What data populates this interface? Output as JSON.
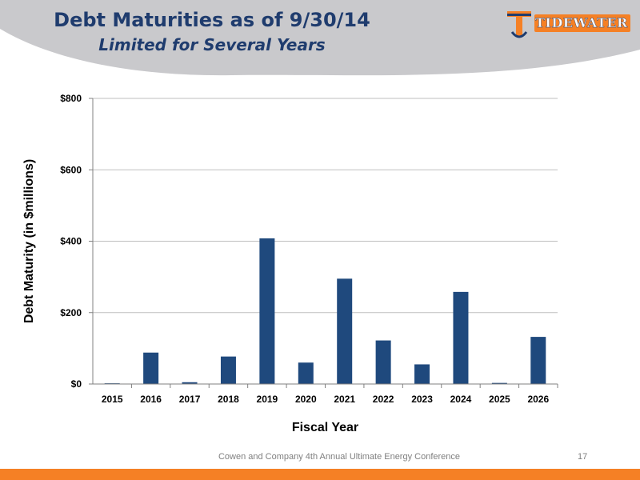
{
  "slide": {
    "title": "Debt Maturities as of 9/30/14",
    "subtitle": "Limited for Several Years",
    "logo_text": "TIDEWATER",
    "footer": "Cowen and Company 4th Annual Ultimate Energy Conference",
    "page_number": "17"
  },
  "colors": {
    "title": "#1f3c6e",
    "bar": "#1f497d",
    "header_band": "#c9c9cc",
    "accent_orange": "#f58025",
    "logo_navy": "#1f3c6e",
    "gridline": "#bfbfbf"
  },
  "chart_data": {
    "type": "bar",
    "categories": [
      "2015",
      "2016",
      "2017",
      "2018",
      "2019",
      "2020",
      "2021",
      "2022",
      "2023",
      "2024",
      "2025",
      "2026"
    ],
    "values": [
      2,
      88,
      5,
      77,
      408,
      60,
      295,
      122,
      55,
      258,
      3,
      132
    ],
    "xlabel": "Fiscal Year",
    "ylabel": "Debt Maturity (in $millions)",
    "ylim": [
      0,
      800
    ],
    "yticks": [
      0,
      200,
      400,
      600,
      800
    ],
    "ytick_labels": [
      "$0",
      "$200",
      "$400",
      "$600",
      "$800"
    ],
    "grid": true,
    "legend": "none"
  }
}
